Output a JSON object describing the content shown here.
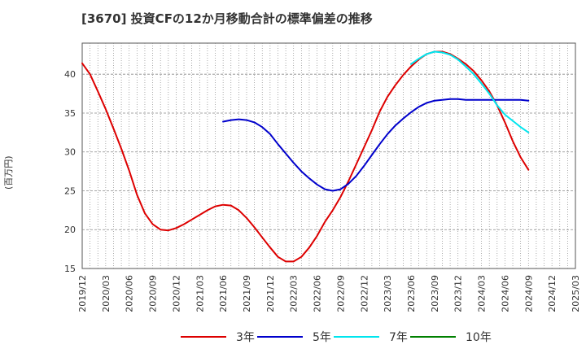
{
  "chart_data": {
    "type": "line",
    "title": "[3670]  投資CFの12か月移動合計の標準偏差の推移",
    "ylabel": "(百万円)",
    "xlabel": "",
    "ylim": [
      15,
      44
    ],
    "yticks": [
      15,
      20,
      25,
      30,
      35,
      40
    ],
    "grid": true,
    "legend_position": "bottom",
    "x_tick_labels": [
      "2019/12",
      "2020/03",
      "2020/06",
      "2020/09",
      "2020/12",
      "2021/03",
      "2021/06",
      "2021/09",
      "2021/12",
      "2022/03",
      "2022/06",
      "2022/09",
      "2022/12",
      "2023/03",
      "2023/06",
      "2023/09",
      "2023/12",
      "2024/03",
      "2024/06",
      "2024/09",
      "2024/12",
      "2025/03"
    ],
    "series": [
      {
        "name": "3年",
        "color": "#dd0000",
        "x": [
          "2019/12",
          "2020/01",
          "2020/02",
          "2020/03",
          "2020/04",
          "2020/05",
          "2020/06",
          "2020/07",
          "2020/08",
          "2020/09",
          "2020/10",
          "2020/11",
          "2020/12",
          "2021/01",
          "2021/02",
          "2021/03",
          "2021/04",
          "2021/05",
          "2021/06",
          "2021/07",
          "2021/08",
          "2021/09",
          "2021/10",
          "2021/11",
          "2021/12",
          "2022/01",
          "2022/02",
          "2022/03",
          "2022/04",
          "2022/05",
          "2022/06",
          "2022/07",
          "2022/08",
          "2022/09",
          "2022/10",
          "2022/11",
          "2022/12",
          "2023/01",
          "2023/02",
          "2023/03",
          "2023/04",
          "2023/05",
          "2023/06",
          "2023/07",
          "2023/08",
          "2023/09",
          "2023/10",
          "2023/11",
          "2023/12",
          "2024/01",
          "2024/02",
          "2024/03",
          "2024/04",
          "2024/05",
          "2024/06",
          "2024/07",
          "2024/08",
          "2024/09"
        ],
        "values": [
          41.4,
          40.0,
          37.8,
          35.5,
          33.0,
          30.4,
          27.6,
          24.5,
          22.1,
          20.7,
          20.0,
          19.9,
          20.2,
          20.7,
          21.3,
          21.9,
          22.5,
          23.0,
          23.2,
          23.1,
          22.5,
          21.5,
          20.3,
          19.0,
          17.7,
          16.5,
          15.9,
          15.9,
          16.5,
          17.7,
          19.2,
          21.0,
          22.5,
          24.2,
          26.2,
          28.4,
          30.6,
          32.8,
          35.2,
          37.1,
          38.6,
          39.9,
          41.0,
          41.9,
          42.6,
          42.9,
          42.9,
          42.6,
          42.0,
          41.3,
          40.4,
          39.2,
          37.8,
          36.0,
          33.8,
          31.4,
          29.3,
          27.7
        ]
      },
      {
        "name": "5年",
        "color": "#0000cc",
        "x": [
          "2021/06",
          "2021/07",
          "2021/08",
          "2021/09",
          "2021/10",
          "2021/11",
          "2021/12",
          "2022/01",
          "2022/02",
          "2022/03",
          "2022/04",
          "2022/05",
          "2022/06",
          "2022/07",
          "2022/08",
          "2022/09",
          "2022/10",
          "2022/11",
          "2022/12",
          "2023/01",
          "2023/02",
          "2023/03",
          "2023/04",
          "2023/05",
          "2023/06",
          "2023/07",
          "2023/08",
          "2023/09",
          "2023/10",
          "2023/11",
          "2023/12",
          "2024/01",
          "2024/02",
          "2024/03",
          "2024/04",
          "2024/05",
          "2024/06",
          "2024/07",
          "2024/08",
          "2024/09"
        ],
        "values": [
          33.9,
          34.1,
          34.2,
          34.1,
          33.8,
          33.2,
          32.3,
          31.0,
          29.8,
          28.6,
          27.5,
          26.6,
          25.8,
          25.2,
          25.0,
          25.2,
          25.9,
          26.9,
          28.2,
          29.6,
          31.0,
          32.3,
          33.4,
          34.3,
          35.1,
          35.8,
          36.3,
          36.6,
          36.7,
          36.8,
          36.8,
          36.7,
          36.7,
          36.7,
          36.7,
          36.7,
          36.7,
          36.7,
          36.7,
          36.6
        ]
      },
      {
        "name": "7年",
        "color": "#00e5ee",
        "x": [
          "2023/06",
          "2023/07",
          "2023/08",
          "2023/09",
          "2023/10",
          "2023/11",
          "2023/12",
          "2024/01",
          "2024/02",
          "2024/03",
          "2024/04",
          "2024/05",
          "2024/06",
          "2024/07",
          "2024/08",
          "2024/09"
        ],
        "values": [
          41.3,
          42.0,
          42.6,
          42.9,
          42.8,
          42.5,
          41.9,
          41.0,
          40.0,
          38.8,
          37.5,
          36.0,
          34.8,
          34.0,
          33.2,
          32.5
        ]
      },
      {
        "name": "10年",
        "color": "#008000",
        "x": [],
        "values": []
      }
    ]
  }
}
